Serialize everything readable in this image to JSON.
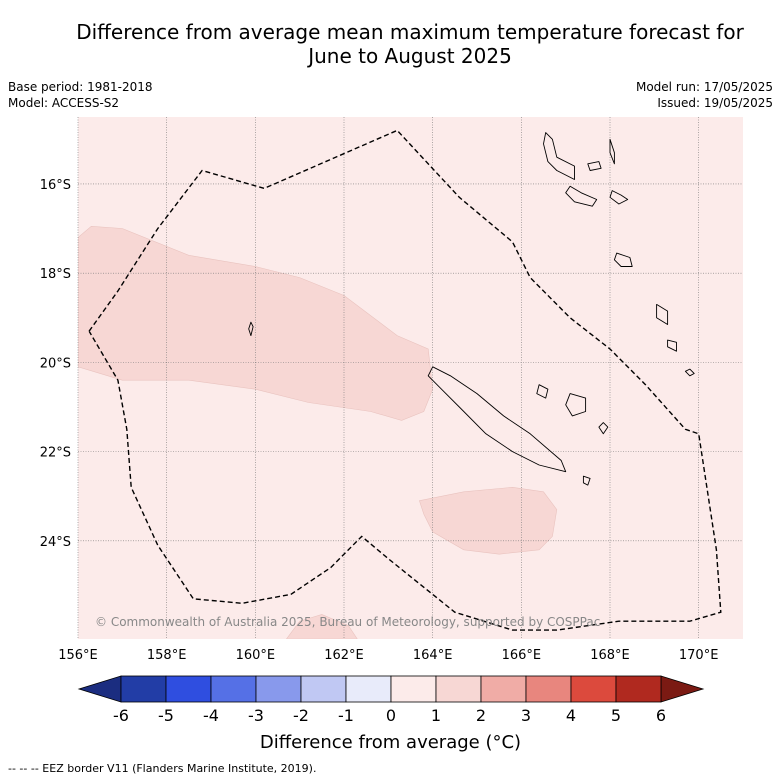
{
  "title_line1": "Difference from average mean maximum temperature forecast for",
  "title_line2": "June to August 2025",
  "meta": {
    "base_period": "Base period: 1981-2018",
    "model": "Model: ACCESS-S2",
    "model_run": "Model run: 17/05/2025",
    "issued": "Issued: 19/05/2025"
  },
  "copyright": "© Commonwealth of Australia 2025, Bureau of Meteorology, supported by COSPPac",
  "map": {
    "lon_range": [
      156,
      171
    ],
    "lat_range": [
      -26.2,
      -14.5
    ],
    "lon_ticks": [
      {
        "v": 156,
        "label": "156°E"
      },
      {
        "v": 158,
        "label": "158°E"
      },
      {
        "v": 160,
        "label": "160°E"
      },
      {
        "v": 162,
        "label": "162°E"
      },
      {
        "v": 164,
        "label": "164°E"
      },
      {
        "v": 166,
        "label": "166°E"
      },
      {
        "v": 168,
        "label": "168°E"
      },
      {
        "v": 170,
        "label": "170°E"
      }
    ],
    "lat_ticks": [
      {
        "v": -16,
        "label": "16°S"
      },
      {
        "v": -18,
        "label": "18°S"
      },
      {
        "v": -20,
        "label": "20°S"
      },
      {
        "v": -22,
        "label": "22°S"
      },
      {
        "v": -24,
        "label": "24°S"
      }
    ],
    "background_color": "#fcebea",
    "anomaly_color": "#f7d7d4",
    "eez_border": [
      [
        156.25,
        -19.3
      ],
      [
        156.9,
        -18.4
      ],
      [
        157.8,
        -17.0
      ],
      [
        158.8,
        -15.7
      ],
      [
        160.2,
        -16.1
      ],
      [
        163.2,
        -14.8
      ],
      [
        164.6,
        -16.3
      ],
      [
        165.8,
        -17.3
      ],
      [
        166.2,
        -18.1
      ],
      [
        167.1,
        -19.0
      ],
      [
        168.0,
        -19.7
      ],
      [
        168.8,
        -20.5
      ],
      [
        169.7,
        -21.5
      ],
      [
        170.0,
        -21.6
      ],
      [
        170.4,
        -24.2
      ],
      [
        170.5,
        -25.6
      ],
      [
        169.8,
        -25.8
      ],
      [
        168.2,
        -25.8
      ],
      [
        166.8,
        -26.0
      ],
      [
        165.8,
        -26.0
      ],
      [
        164.5,
        -25.6
      ],
      [
        163.0,
        -24.4
      ],
      [
        162.4,
        -23.9
      ],
      [
        161.7,
        -24.6
      ],
      [
        160.8,
        -25.2
      ],
      [
        159.7,
        -25.4
      ],
      [
        158.6,
        -25.3
      ],
      [
        157.8,
        -24.1
      ],
      [
        157.2,
        -22.8
      ],
      [
        157.1,
        -21.5
      ],
      [
        156.9,
        -20.4
      ],
      [
        156.25,
        -19.3
      ]
    ],
    "anomaly_regions": [
      [
        [
          156.0,
          -17.2
        ],
        [
          156.3,
          -16.95
        ],
        [
          157.0,
          -17.0
        ],
        [
          158.5,
          -17.6
        ],
        [
          160.0,
          -17.85
        ],
        [
          161.0,
          -18.1
        ],
        [
          162.0,
          -18.5
        ],
        [
          163.2,
          -19.4
        ],
        [
          163.9,
          -19.7
        ],
        [
          164.0,
          -20.6
        ],
        [
          163.8,
          -21.1
        ],
        [
          163.3,
          -21.3
        ],
        [
          162.6,
          -21.1
        ],
        [
          161.2,
          -20.9
        ],
        [
          160.0,
          -20.6
        ],
        [
          158.5,
          -20.4
        ],
        [
          157.0,
          -20.4
        ],
        [
          156.0,
          -20.1
        ]
      ],
      [
        [
          163.7,
          -23.1
        ],
        [
          164.7,
          -22.9
        ],
        [
          165.8,
          -22.8
        ],
        [
          166.5,
          -22.9
        ],
        [
          166.8,
          -23.3
        ],
        [
          166.7,
          -23.9
        ],
        [
          166.4,
          -24.2
        ],
        [
          165.5,
          -24.3
        ],
        [
          164.7,
          -24.2
        ],
        [
          164.0,
          -23.8
        ],
        [
          163.8,
          -23.4
        ]
      ],
      [
        [
          160.7,
          -26.2
        ],
        [
          161.0,
          -25.8
        ],
        [
          161.5,
          -25.65
        ],
        [
          162.1,
          -25.9
        ],
        [
          162.3,
          -26.2
        ]
      ]
    ],
    "islands": [
      [
        [
          164.0,
          -20.1
        ],
        [
          164.4,
          -20.3
        ],
        [
          165.0,
          -20.7
        ],
        [
          165.6,
          -21.2
        ],
        [
          166.2,
          -21.6
        ],
        [
          166.9,
          -22.2
        ],
        [
          167.0,
          -22.45
        ],
        [
          166.4,
          -22.3
        ],
        [
          165.8,
          -22.0
        ],
        [
          165.2,
          -21.6
        ],
        [
          164.6,
          -21.0
        ],
        [
          164.2,
          -20.6
        ],
        [
          163.9,
          -20.3
        ]
      ],
      [
        [
          166.55,
          -14.85
        ],
        [
          166.7,
          -15.0
        ],
        [
          166.8,
          -15.4
        ],
        [
          167.2,
          -15.6
        ],
        [
          167.2,
          -15.9
        ],
        [
          166.8,
          -15.7
        ],
        [
          166.6,
          -15.5
        ],
        [
          166.5,
          -15.1
        ]
      ],
      [
        [
          167.1,
          -16.05
        ],
        [
          167.35,
          -16.2
        ],
        [
          167.7,
          -16.35
        ],
        [
          167.6,
          -16.5
        ],
        [
          167.2,
          -16.4
        ],
        [
          167.0,
          -16.2
        ]
      ],
      [
        [
          168.05,
          -16.15
        ],
        [
          168.25,
          -16.25
        ],
        [
          168.4,
          -16.35
        ],
        [
          168.2,
          -16.45
        ],
        [
          168.0,
          -16.3
        ]
      ],
      [
        [
          168.15,
          -17.55
        ],
        [
          168.45,
          -17.65
        ],
        [
          168.5,
          -17.85
        ],
        [
          168.25,
          -17.85
        ],
        [
          168.1,
          -17.7
        ]
      ],
      [
        [
          169.05,
          -18.7
        ],
        [
          169.3,
          -18.85
        ],
        [
          169.3,
          -19.15
        ],
        [
          169.05,
          -19.0
        ]
      ],
      [
        [
          169.3,
          -19.5
        ],
        [
          169.5,
          -19.55
        ],
        [
          169.5,
          -19.75
        ],
        [
          169.3,
          -19.65
        ]
      ],
      [
        [
          167.1,
          -20.7
        ],
        [
          167.45,
          -20.8
        ],
        [
          167.45,
          -21.1
        ],
        [
          167.15,
          -21.2
        ],
        [
          167.0,
          -20.95
        ]
      ],
      [
        [
          167.85,
          -21.35
        ],
        [
          167.95,
          -21.45
        ],
        [
          167.85,
          -21.6
        ],
        [
          167.75,
          -21.45
        ]
      ],
      [
        [
          168.0,
          -15.0
        ],
        [
          168.1,
          -15.3
        ],
        [
          168.1,
          -15.55
        ],
        [
          168.0,
          -15.3
        ]
      ],
      [
        [
          167.5,
          -15.55
        ],
        [
          167.75,
          -15.5
        ],
        [
          167.8,
          -15.65
        ],
        [
          167.55,
          -15.7
        ]
      ],
      [
        [
          166.4,
          -20.5
        ],
        [
          166.6,
          -20.6
        ],
        [
          166.55,
          -20.8
        ],
        [
          166.35,
          -20.7
        ]
      ],
      [
        [
          167.4,
          -22.55
        ],
        [
          167.55,
          -22.6
        ],
        [
          167.5,
          -22.75
        ],
        [
          167.4,
          -22.7
        ]
      ],
      [
        [
          169.8,
          -20.15
        ],
        [
          169.9,
          -20.25
        ],
        [
          169.8,
          -20.3
        ],
        [
          169.7,
          -20.2
        ]
      ],
      [
        [
          159.9,
          -19.1
        ],
        [
          159.95,
          -19.2
        ],
        [
          159.9,
          -19.4
        ],
        [
          159.85,
          -19.25
        ]
      ]
    ]
  },
  "colorbar": {
    "title": "Difference from average (°C)",
    "ticks": [
      "-6",
      "-5",
      "-4",
      "-3",
      "-2",
      "-1",
      "0",
      "1",
      "2",
      "3",
      "4",
      "5",
      "6"
    ],
    "colors": [
      "#223da6",
      "#2f4ee0",
      "#5570e6",
      "#8899ec",
      "#c0c8f3",
      "#e8ebfa",
      "#fcebea",
      "#f7d7d4",
      "#f0aca6",
      "#e8867e",
      "#dc4a3d",
      "#b0291f"
    ],
    "under_color": "#1b2d80",
    "over_color": "#7b1a13"
  },
  "footer": "--  --  -- EEZ border V11 (Flanders Marine Institute, 2019)."
}
